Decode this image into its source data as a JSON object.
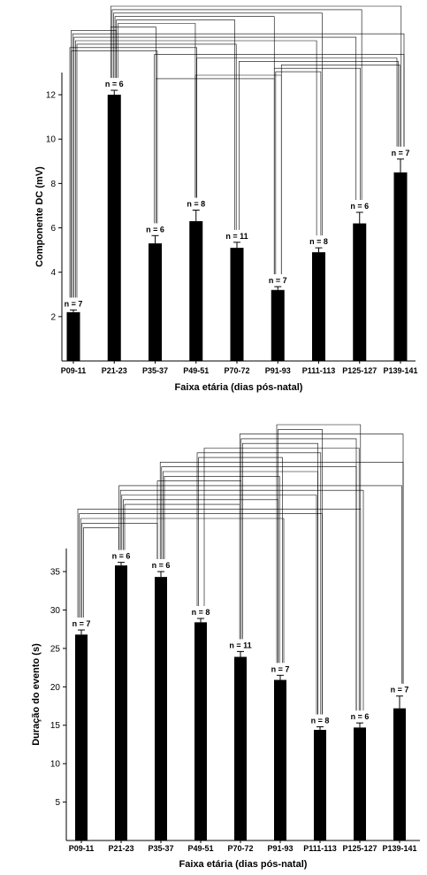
{
  "chart_data": [
    {
      "type": "bar",
      "categories": [
        "P09-11",
        "P21-23",
        "P35-37",
        "P49-51",
        "P70-72",
        "P91-93",
        "P111-113",
        "P125-127",
        "P139-141"
      ],
      "values": [
        2.2,
        12.0,
        5.3,
        6.3,
        5.1,
        3.2,
        4.9,
        6.2,
        8.5
      ],
      "errors": [
        0.1,
        0.2,
        0.35,
        0.5,
        0.25,
        0.15,
        0.2,
        0.5,
        0.6
      ],
      "n_labels": [
        "n = 7",
        "n = 6",
        "n = 6",
        "n = 8",
        "n = 11",
        "n = 7",
        "n = 8",
        "n = 6",
        "n = 7"
      ],
      "title": "",
      "xlabel": "Faixa etária (dias pós-natal)",
      "ylabel": "Componente DC (mV)",
      "ylim": [
        0,
        13
      ],
      "yticks": [
        2,
        4,
        6,
        8,
        10,
        12
      ],
      "bar_color": "#000000",
      "grid": false,
      "significance_brackets": [
        [
          1,
          8
        ],
        [
          1,
          7
        ],
        [
          1,
          6
        ],
        [
          1,
          5
        ],
        [
          1,
          4
        ],
        [
          1,
          3
        ],
        [
          1,
          2
        ],
        [
          0,
          1
        ],
        [
          0,
          8
        ],
        [
          0,
          7
        ],
        [
          0,
          6
        ],
        [
          0,
          4
        ],
        [
          0,
          3
        ],
        [
          0,
          2
        ],
        [
          2,
          8
        ],
        [
          3,
          8
        ],
        [
          4,
          8
        ],
        [
          5,
          8
        ],
        [
          5,
          7
        ],
        [
          5,
          6
        ],
        [
          3,
          5
        ],
        [
          2,
          5
        ]
      ]
    },
    {
      "type": "bar",
      "categories": [
        "P09-11",
        "P21-23",
        "P35-37",
        "P49-51",
        "P70-72",
        "P91-93",
        "P111-113",
        "P125-127",
        "P139-141"
      ],
      "values": [
        26.8,
        35.8,
        34.3,
        28.4,
        23.9,
        20.9,
        14.4,
        14.7,
        17.2
      ],
      "errors": [
        0.6,
        0.4,
        0.7,
        0.5,
        0.7,
        0.6,
        0.4,
        0.6,
        1.6
      ],
      "n_labels": [
        "n = 7",
        "n = 6",
        "n = 6",
        "n = 8",
        "n = 11",
        "n = 7",
        "n = 8",
        "n = 6",
        "n = 7"
      ],
      "title": "",
      "xlabel": "Faixa etária (dias pós-natal)",
      "ylabel": "Duração do evento (s)",
      "ylim": [
        0,
        38
      ],
      "yticks": [
        5,
        10,
        15,
        20,
        25,
        30,
        35
      ],
      "bar_color": "#000000",
      "grid": false,
      "significance_brackets": [
        [
          5,
          7
        ],
        [
          5,
          6
        ],
        [
          4,
          8
        ],
        [
          4,
          7
        ],
        [
          4,
          6
        ],
        [
          3,
          7
        ],
        [
          3,
          6
        ],
        [
          3,
          5
        ],
        [
          2,
          8
        ],
        [
          2,
          7
        ],
        [
          2,
          6
        ],
        [
          2,
          5
        ],
        [
          2,
          4
        ],
        [
          1,
          8
        ],
        [
          1,
          7
        ],
        [
          1,
          6
        ],
        [
          1,
          5
        ],
        [
          1,
          4
        ],
        [
          0,
          7
        ],
        [
          0,
          6
        ],
        [
          0,
          5
        ],
        [
          0,
          2
        ],
        [
          0,
          1
        ]
      ]
    }
  ]
}
